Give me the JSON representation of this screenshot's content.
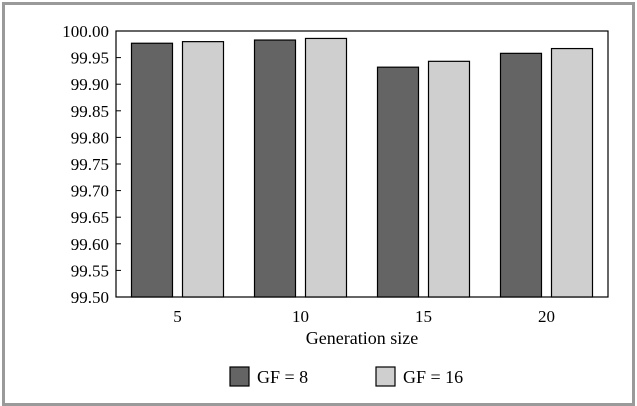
{
  "chart_data": {
    "type": "bar",
    "categories": [
      "5",
      "10",
      "15",
      "20"
    ],
    "series": [
      {
        "name": "GF = 8",
        "values": [
          99.977,
          99.983,
          99.932,
          99.958
        ],
        "color": "#646464"
      },
      {
        "name": "GF = 16",
        "values": [
          99.98,
          99.986,
          99.943,
          99.967
        ],
        "color": "#cfcfcf"
      }
    ],
    "title": "",
    "xlabel": "Generation size",
    "ylabel": "",
    "ylim": [
      99.5,
      100.0
    ],
    "yticks": [
      "100.00",
      "99.95",
      "99.90",
      "99.85",
      "99.80",
      "99.75",
      "99.70",
      "99.65",
      "99.60",
      "99.55",
      "99.50"
    ],
    "grid": false,
    "legend_position": "bottom"
  }
}
